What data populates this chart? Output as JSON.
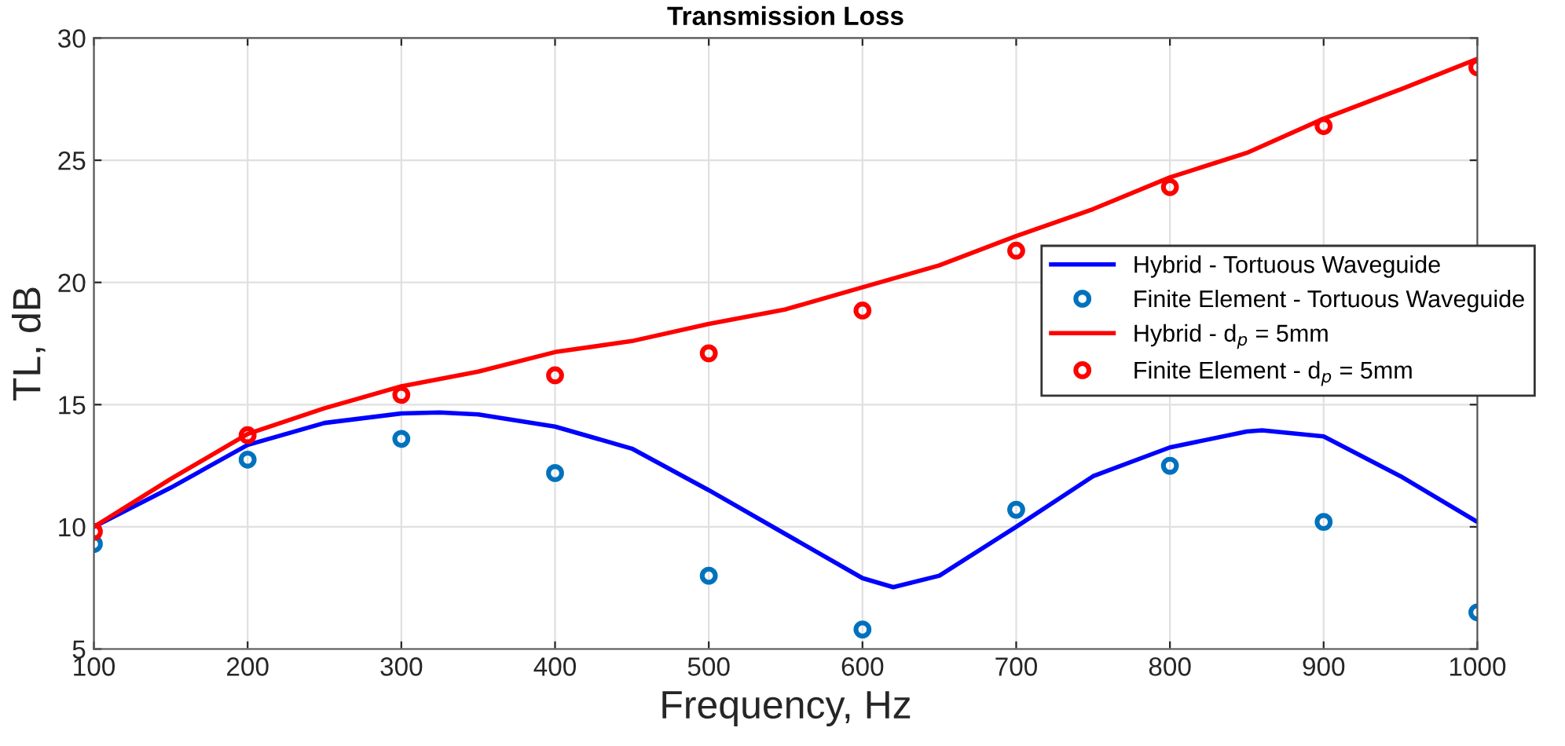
{
  "chart_data": {
    "type": "line",
    "title": "Transmission Loss",
    "xlabel": "Frequency, Hz",
    "ylabel": "TL, dB",
    "xlim": [
      100,
      1000
    ],
    "xticks": [
      100,
      200,
      300,
      400,
      500,
      600,
      700,
      800,
      900,
      1000
    ],
    "ylim": [
      5,
      30
    ],
    "yticks": [
      5,
      10,
      15,
      20,
      25,
      30
    ],
    "grid": true,
    "legend": "right",
    "series": [
      {
        "name": "Hybrid - Tortuous Waveguide",
        "color": "#0000ff",
        "marker": "none",
        "line_style": "solid",
        "x": [
          100,
          150,
          200,
          250,
          300,
          325,
          350,
          400,
          450,
          500,
          550,
          600,
          620,
          650,
          700,
          750,
          800,
          850,
          860,
          900,
          950,
          1000
        ],
        "values": [
          10.0,
          11.6,
          13.35,
          14.25,
          14.64,
          14.68,
          14.6,
          14.1,
          13.2,
          11.5,
          9.7,
          7.9,
          7.53,
          8.0,
          10.0,
          12.07,
          13.25,
          13.9,
          13.95,
          13.7,
          12.07,
          10.2
        ]
      },
      {
        "name": "Finite Element - Tortuous Waveguide",
        "type": "scatter",
        "color": "#0072bd",
        "marker": "circle",
        "x": [
          100,
          200,
          300,
          400,
          500,
          600,
          700,
          800,
          900,
          1000
        ],
        "values": [
          9.3,
          12.75,
          13.6,
          12.2,
          8.0,
          5.8,
          10.7,
          12.5,
          10.2,
          6.5
        ]
      },
      {
        "name": "Hybrid - d$_{p}$ = 5mm",
        "color": "#ff0000",
        "marker": "none",
        "line_style": "solid",
        "x": [
          100,
          150,
          200,
          250,
          300,
          350,
          400,
          450,
          500,
          550,
          600,
          650,
          700,
          750,
          800,
          850,
          900,
          950,
          1000
        ],
        "values": [
          10.0,
          11.96,
          13.8,
          14.85,
          15.75,
          16.35,
          17.15,
          17.6,
          18.3,
          18.9,
          19.8,
          20.7,
          21.9,
          23.0,
          24.3,
          25.3,
          26.7,
          27.9,
          29.15
        ]
      },
      {
        "name": "Finite Element - d$_{p}$ = 5mm",
        "type": "scatter",
        "color": "#ff0000",
        "marker": "circle",
        "x": [
          100,
          200,
          300,
          400,
          500,
          600,
          700,
          800,
          900,
          1000
        ],
        "values": [
          9.8,
          13.75,
          15.4,
          16.2,
          17.1,
          18.85,
          21.3,
          23.9,
          26.4,
          28.8
        ]
      }
    ]
  }
}
